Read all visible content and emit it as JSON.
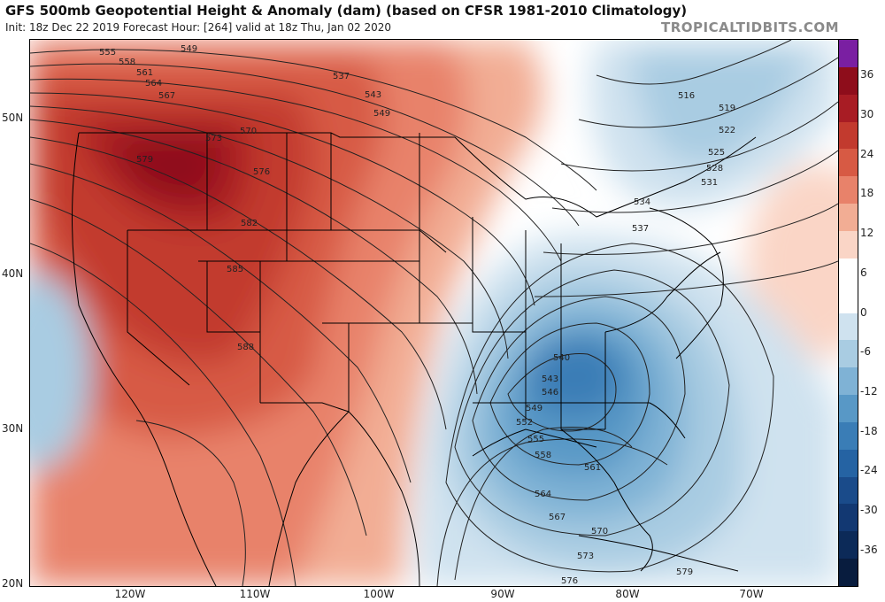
{
  "header": {
    "title": "GFS 500mb Geopotential Height & Anomaly (dam) (based on CFSR 1981-2010 Climatology)",
    "subtitle": "Init: 18z Dec 22 2019   Forecast Hour: [264]   valid at 18z Thu, Jan 02 2020",
    "watermark": "TROPICALTIDBITS.COM"
  },
  "axes": {
    "lat_labels": [
      "50N",
      "40N",
      "30N",
      "20N"
    ],
    "lon_labels": [
      "120W",
      "110W",
      "100W",
      "90W",
      "80W",
      "70W"
    ]
  },
  "colorbar": {
    "labels": [
      "36",
      "30",
      "24",
      "18",
      "12",
      "6",
      "0",
      "-6",
      "-12",
      "-18",
      "-24",
      "-30",
      "-36"
    ],
    "colors": [
      "#7a1fa2",
      "#8e0d1b",
      "#a81c24",
      "#c23a2e",
      "#d75a44",
      "#e8826a",
      "#f2ad94",
      "#fad5c6",
      "#ffffff",
      "#ffffff",
      "#cfe2ef",
      "#a9cce2",
      "#7fb2d5",
      "#5898c6",
      "#3a7db6",
      "#2563a3",
      "#1a4b8a",
      "#123872",
      "#0c2a58",
      "#081c3e"
    ]
  },
  "contour_labels": [
    "549",
    "555",
    "558",
    "561",
    "564",
    "567",
    "570",
    "573",
    "576",
    "579",
    "582",
    "585",
    "588",
    "537",
    "543",
    "549",
    "516",
    "519",
    "522",
    "525",
    "528",
    "531",
    "534",
    "537",
    "540",
    "543",
    "546",
    "549",
    "552",
    "555",
    "558",
    "561",
    "564",
    "567",
    "570",
    "573",
    "576",
    "579"
  ],
  "legend_colors": {
    "warm": "#c23a2e",
    "cold": "#3a7db6",
    "contour": "#222222",
    "border": "#000000"
  }
}
